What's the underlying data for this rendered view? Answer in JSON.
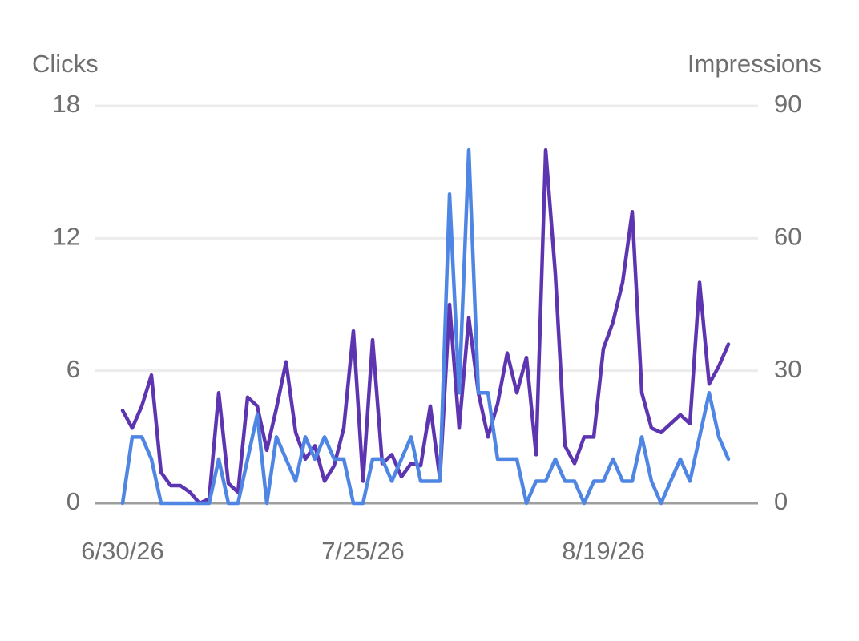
{
  "chart_data": {
    "type": "line",
    "ylabel": "Clicks",
    "y2label": "Impressions",
    "categories": [
      "6/30/26",
      null,
      null,
      null,
      null,
      null,
      null,
      null,
      null,
      null,
      null,
      null,
      null,
      null,
      null,
      null,
      null,
      null,
      null,
      null,
      null,
      null,
      null,
      null,
      null,
      "7/25/26",
      null,
      null,
      null,
      null,
      null,
      null,
      null,
      null,
      null,
      null,
      null,
      null,
      null,
      null,
      null,
      null,
      null,
      null,
      null,
      null,
      null,
      null,
      null,
      null,
      "8/19/26",
      null,
      null,
      null,
      null,
      null,
      null,
      null,
      null,
      null,
      null,
      null,
      null,
      null
    ],
    "series": [
      {
        "color": "#5e35b1",
        "values": [
          4.2,
          3.4,
          4.4,
          5.8,
          1.4,
          0.8,
          0.8,
          0.5,
          0,
          0.2,
          5,
          0.9,
          0.5,
          4.8,
          4.4,
          2.4,
          4.3,
          6.4,
          3.2,
          2,
          2.6,
          1,
          1.7,
          3.4,
          7.8,
          1,
          7.4,
          1.8,
          2.2,
          1.2,
          1.8,
          1.7,
          4.4,
          1.1,
          9,
          3.4,
          8.4,
          5,
          3,
          4.5,
          6.8,
          5,
          6.6,
          2.2,
          16,
          10.4,
          2.6,
          1.8,
          3,
          3,
          7,
          8.2,
          10,
          13.2,
          5,
          3.4,
          3.2,
          3.6,
          4,
          3.6,
          10,
          5.4,
          6.2,
          7.2
        ]
      },
      {
        "color": "#4f86e3",
        "axis": "y2",
        "values": [
          0,
          15,
          15,
          10,
          0,
          0,
          0,
          0,
          0,
          0,
          10,
          0,
          0,
          10,
          20,
          0,
          15,
          10,
          5,
          15,
          10,
          15,
          10,
          10,
          0,
          0,
          10,
          10,
          5,
          10,
          15,
          5,
          5,
          5,
          70,
          25,
          80,
          25,
          25,
          10,
          10,
          10,
          0,
          5,
          5,
          10,
          5,
          5,
          0,
          5,
          5,
          10,
          5,
          5,
          15,
          5,
          0,
          5,
          10,
          5,
          15,
          25,
          15,
          10
        ]
      }
    ],
    "ylim": [
      0,
      18
    ],
    "yticks": [
      0,
      6,
      12,
      18
    ],
    "y2lim": [
      0,
      90
    ],
    "y2ticks": [
      0,
      30,
      60,
      90
    ],
    "grid": true
  }
}
